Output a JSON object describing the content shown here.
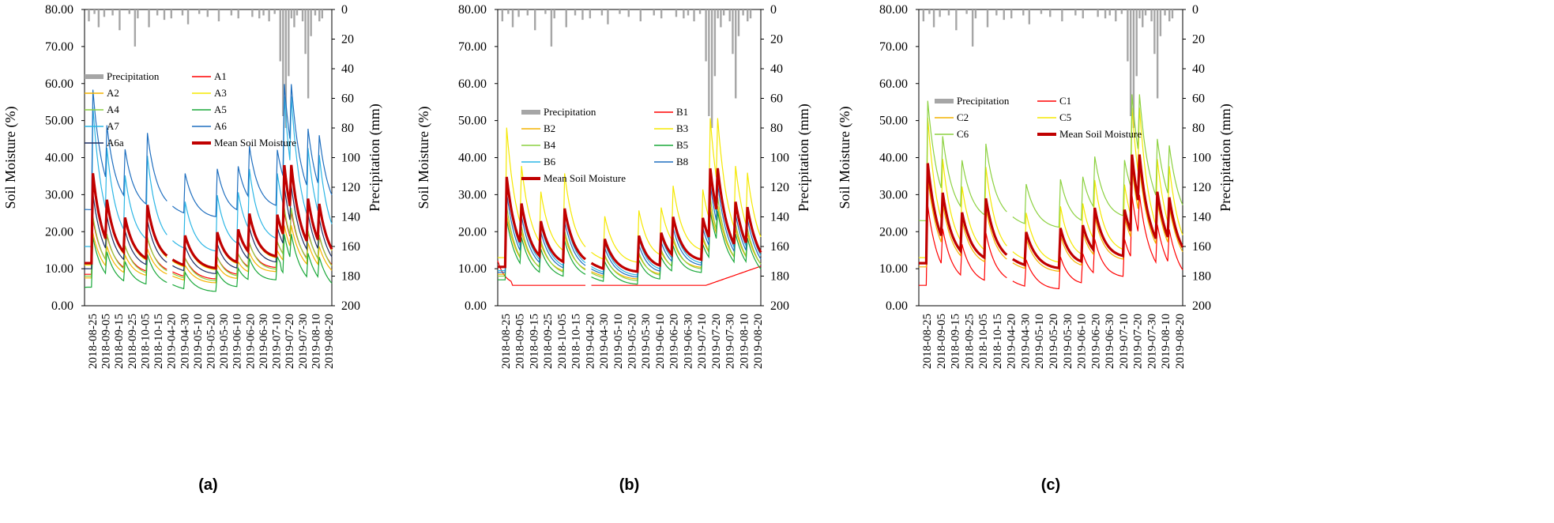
{
  "chart_data": [
    {
      "type": "line",
      "panel_label": "(a)",
      "ylabel_left": "Soil  Moisture (%)",
      "ylabel_right": "Precipitation (mm)",
      "ylim_left": [
        0,
        80
      ],
      "ylim_right": [
        0,
        200
      ],
      "right_axis_inverted": true,
      "yticks_left": [
        "0.00",
        "10.00",
        "20.00",
        "30.00",
        "40.00",
        "50.00",
        "60.00",
        "70.00",
        "80.00"
      ],
      "yticks_right": [
        "0",
        "20",
        "40",
        "60",
        "80",
        "100",
        "120",
        "140",
        "160",
        "180",
        "200"
      ],
      "x_tick_labels": [
        "2018-08-25",
        "2018-09-05",
        "2018-09-15",
        "2018-09-25",
        "2018-10-05",
        "2018-10-15",
        "2019-04-20",
        "2019-04-30",
        "2019-05-10",
        "2019-05-20",
        "2019-05-30",
        "2019-06-10",
        "2019-06-20",
        "2019-06-30",
        "2019-07-10",
        "2019-07-20",
        "2019-07-30",
        "2019-08-10",
        "2019-08-20"
      ],
      "grid": false,
      "legend": [
        "Precipitation",
        "A1",
        "A2",
        "A3",
        "A4",
        "A5",
        "A7",
        "A6",
        "A6a",
        "Mean Soil Moisture"
      ],
      "precipitation": [
        [
          3,
          8
        ],
        [
          7,
          3
        ],
        [
          10,
          12
        ],
        [
          14,
          5
        ],
        [
          20,
          4
        ],
        [
          25,
          14
        ],
        [
          32,
          3
        ],
        [
          36,
          25
        ],
        [
          38,
          6
        ],
        [
          46,
          12
        ],
        [
          52,
          4
        ],
        [
          57,
          7
        ],
        [
          62,
          6
        ],
        [
          70,
          4
        ],
        [
          74,
          10
        ],
        [
          82,
          3
        ],
        [
          88,
          5
        ],
        [
          96,
          8
        ],
        [
          105,
          4
        ],
        [
          110,
          6
        ],
        [
          120,
          5
        ],
        [
          125,
          6
        ],
        [
          128,
          4
        ],
        [
          132,
          8
        ],
        [
          136,
          3
        ],
        [
          140,
          35
        ],
        [
          142,
          72
        ],
        [
          144,
          80
        ],
        [
          146,
          45
        ],
        [
          148,
          6
        ],
        [
          150,
          12
        ],
        [
          152,
          4
        ],
        [
          156,
          8
        ],
        [
          158,
          30
        ],
        [
          160,
          60
        ],
        [
          162,
          18
        ],
        [
          165,
          4
        ],
        [
          168,
          8
        ],
        [
          170,
          6
        ]
      ],
      "series": [
        {
          "name": "A1",
          "color": "#ff0000",
          "width": 1.2,
          "base": 8.5,
          "shift": 0,
          "scale": 0.55,
          "end": "high"
        },
        {
          "name": "A2",
          "color": "#f4b400",
          "width": 1.2,
          "base": 7.5,
          "shift": 0,
          "scale": 0.45,
          "end": "mid"
        },
        {
          "name": "A3",
          "color": "#f5e800",
          "width": 1.2,
          "base": 10,
          "shift": 1,
          "scale": 0.9,
          "end": "high"
        },
        {
          "name": "A4",
          "color": "#8cd140",
          "width": 1.2,
          "base": 8,
          "shift": 0,
          "scale": 0.6,
          "end": "mid"
        },
        {
          "name": "A5",
          "color": "#1aa83a",
          "width": 1.2,
          "base": 6,
          "shift": -1,
          "scale": 0.5,
          "end": "low"
        },
        {
          "name": "A7",
          "color": "#2cb6e5",
          "width": 1.2,
          "base": 14,
          "shift": 2,
          "scale": 1.4,
          "end": "high"
        },
        {
          "name": "A6",
          "color": "#1f6fbf",
          "width": 1.2,
          "base": 20,
          "shift": 6,
          "scale": 1.2,
          "end": "high"
        },
        {
          "name": "A6a",
          "color": "#1d2f63",
          "width": 1.2,
          "base": 9,
          "shift": 1,
          "scale": 0.75,
          "end": "mid"
        },
        {
          "name": "Mean Soil Moisture",
          "color": "#c00000",
          "width": 3.2,
          "base": 10,
          "shift": 1.5,
          "scale": 0.9,
          "end": "high"
        }
      ]
    },
    {
      "type": "line",
      "panel_label": "(b)",
      "ylabel_left": "Soil  Moisture (%)",
      "ylabel_right": "Precipitation (mm)",
      "ylim_left": [
        0,
        80
      ],
      "ylim_right": [
        0,
        200
      ],
      "right_axis_inverted": true,
      "yticks_left": [
        "0.00",
        "10.00",
        "20.00",
        "30.00",
        "40.00",
        "50.00",
        "60.00",
        "70.00",
        "80.00"
      ],
      "yticks_right": [
        "0",
        "20",
        "40",
        "60",
        "80",
        "100",
        "120",
        "140",
        "160",
        "180",
        "200"
      ],
      "x_tick_labels": [
        "2018-08-25",
        "2018-09-05",
        "2018-09-15",
        "2018-09-25",
        "2018-10-05",
        "2018-10-15",
        "2019-04-20",
        "2019-04-30",
        "2019-05-10",
        "2019-05-20",
        "2019-05-30",
        "2019-06-10",
        "2019-06-20",
        "2019-06-30",
        "2019-07-10",
        "2019-07-20",
        "2019-07-30",
        "2019-08-10",
        "2019-08-20"
      ],
      "grid": false,
      "legend": [
        "Precipitation",
        "B1",
        "B2",
        "B3",
        "B4",
        "B5",
        "B6",
        "B8",
        "Mean Soil Moisture"
      ],
      "precipitation": [
        [
          3,
          8
        ],
        [
          7,
          3
        ],
        [
          10,
          12
        ],
        [
          14,
          5
        ],
        [
          20,
          4
        ],
        [
          25,
          14
        ],
        [
          32,
          3
        ],
        [
          36,
          25
        ],
        [
          38,
          6
        ],
        [
          46,
          12
        ],
        [
          52,
          4
        ],
        [
          57,
          7
        ],
        [
          62,
          6
        ],
        [
          70,
          4
        ],
        [
          74,
          10
        ],
        [
          82,
          3
        ],
        [
          88,
          5
        ],
        [
          96,
          8
        ],
        [
          105,
          4
        ],
        [
          110,
          6
        ],
        [
          120,
          5
        ],
        [
          125,
          6
        ],
        [
          128,
          4
        ],
        [
          132,
          8
        ],
        [
          136,
          3
        ],
        [
          140,
          35
        ],
        [
          142,
          72
        ],
        [
          144,
          80
        ],
        [
          146,
          45
        ],
        [
          148,
          6
        ],
        [
          150,
          12
        ],
        [
          152,
          4
        ],
        [
          156,
          8
        ],
        [
          158,
          30
        ],
        [
          160,
          60
        ],
        [
          162,
          18
        ],
        [
          165,
          4
        ],
        [
          168,
          8
        ],
        [
          170,
          6
        ]
      ],
      "series": [
        {
          "name": "B1",
          "color": "#ff0000",
          "width": 1.2,
          "base": 5.5,
          "shift": -3,
          "scale": 0.2,
          "end": "b1"
        },
        {
          "name": "B2",
          "color": "#f4b400",
          "width": 1.2,
          "base": 8.5,
          "shift": 0,
          "scale": 0.6,
          "end": "mid"
        },
        {
          "name": "B3",
          "color": "#f5e800",
          "width": 1.2,
          "base": 11,
          "shift": 2,
          "scale": 1.3,
          "end": "high"
        },
        {
          "name": "B4",
          "color": "#8cd140",
          "width": 1.2,
          "base": 8,
          "shift": 0,
          "scale": 0.7,
          "end": "mid"
        },
        {
          "name": "B5",
          "color": "#1aa83a",
          "width": 1.2,
          "base": 7.5,
          "shift": -0.5,
          "scale": 0.6,
          "end": "mid"
        },
        {
          "name": "B6",
          "color": "#2cb6e5",
          "width": 1.2,
          "base": 9,
          "shift": 0.5,
          "scale": 0.9,
          "end": "mid"
        },
        {
          "name": "B8",
          "color": "#1f6fbf",
          "width": 1.2,
          "base": 8.5,
          "shift": 0.5,
          "scale": 0.8,
          "end": "mid"
        },
        {
          "name": "Mean Soil Moisture",
          "color": "#c00000",
          "width": 3.2,
          "base": 9.5,
          "shift": 1,
          "scale": 0.9,
          "end": "high"
        }
      ]
    },
    {
      "type": "line",
      "panel_label": "(c)",
      "ylabel_left": "Soil  Moisture (%)",
      "ylabel_right": "Precipitation (mm)",
      "ylim_left": [
        0,
        80
      ],
      "ylim_right": [
        0,
        200
      ],
      "right_axis_inverted": true,
      "yticks_left": [
        "0.00",
        "10.00",
        "20.00",
        "30.00",
        "40.00",
        "50.00",
        "60.00",
        "70.00",
        "80.00"
      ],
      "yticks_right": [
        "0",
        "20",
        "40",
        "60",
        "80",
        "100",
        "120",
        "140",
        "160",
        "180",
        "200"
      ],
      "x_tick_labels": [
        "2018-08-25",
        "2018-09-05",
        "2018-09-15",
        "2018-09-25",
        "2018-10-05",
        "2018-10-15",
        "2019-04-20",
        "2019-04-30",
        "2019-05-10",
        "2019-05-20",
        "2019-05-30",
        "2019-06-10",
        "2019-06-20",
        "2019-06-30",
        "2019-07-10",
        "2019-07-20",
        "2019-07-30",
        "2019-08-10",
        "2019-08-20"
      ],
      "grid": false,
      "legend": [
        "Precipitation",
        "C1",
        "C2",
        "C5",
        "C6",
        "Mean Soil Moisture"
      ],
      "precipitation": [
        [
          3,
          8
        ],
        [
          7,
          3
        ],
        [
          10,
          12
        ],
        [
          14,
          5
        ],
        [
          20,
          4
        ],
        [
          25,
          14
        ],
        [
          32,
          3
        ],
        [
          36,
          25
        ],
        [
          38,
          6
        ],
        [
          46,
          12
        ],
        [
          52,
          4
        ],
        [
          57,
          7
        ],
        [
          62,
          6
        ],
        [
          70,
          4
        ],
        [
          74,
          10
        ],
        [
          82,
          3
        ],
        [
          88,
          5
        ],
        [
          96,
          8
        ],
        [
          105,
          4
        ],
        [
          110,
          6
        ],
        [
          120,
          5
        ],
        [
          125,
          6
        ],
        [
          128,
          4
        ],
        [
          132,
          8
        ],
        [
          136,
          3
        ],
        [
          140,
          35
        ],
        [
          142,
          72
        ],
        [
          144,
          80
        ],
        [
          146,
          45
        ],
        [
          148,
          6
        ],
        [
          150,
          12
        ],
        [
          152,
          4
        ],
        [
          156,
          8
        ],
        [
          158,
          30
        ],
        [
          160,
          60
        ],
        [
          162,
          18
        ],
        [
          165,
          4
        ],
        [
          168,
          8
        ],
        [
          170,
          6
        ]
      ],
      "series": [
        {
          "name": "C1",
          "color": "#ff0000",
          "width": 1.2,
          "base": 7,
          "shift": -1.5,
          "scale": 0.8,
          "end": "mid"
        },
        {
          "name": "C2",
          "color": "#f4b400",
          "width": 1.2,
          "base": 10,
          "shift": 0.5,
          "scale": 0.9,
          "end": "mid"
        },
        {
          "name": "C5",
          "color": "#f5e800",
          "width": 1.2,
          "base": 11,
          "shift": 2,
          "scale": 1.4,
          "end": "high"
        },
        {
          "name": "C6",
          "color": "#8cd140",
          "width": 1.2,
          "base": 18,
          "shift": 5,
          "scale": 1.2,
          "end": "high"
        },
        {
          "name": "Mean Soil Moisture",
          "color": "#c00000",
          "width": 3.2,
          "base": 10,
          "shift": 1.5,
          "scale": 1.0,
          "end": "high"
        }
      ]
    }
  ]
}
